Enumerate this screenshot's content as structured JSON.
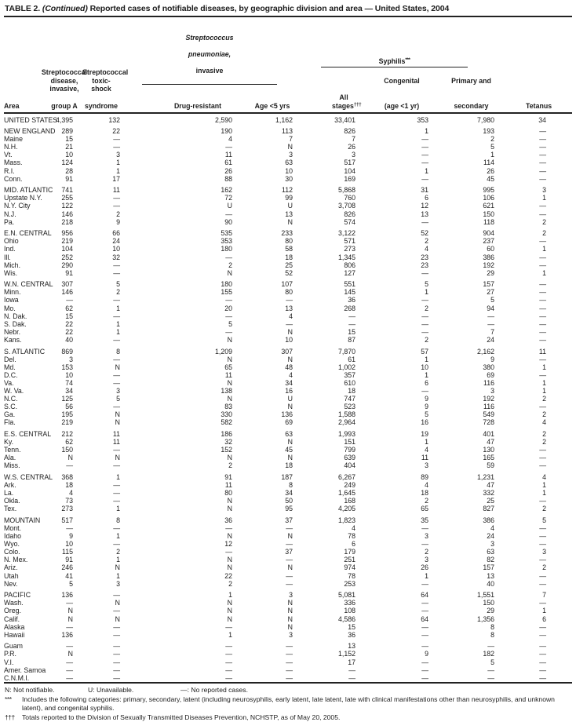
{
  "title": {
    "label": "TABLE 2.",
    "continued": "(Continued)",
    "text": "Reported cases of notifiable diseases, by geographic division and area — United States, 2004"
  },
  "header": {
    "area": "Area",
    "strep_a_top": "Streptococcal\ndisease,\ninvasive,",
    "strep_a_bottom": "group A",
    "toxic_top": "Streptococcal\ntoxic-shock",
    "toxic_bottom": "syndrome",
    "pneu_line1": "Streptococcus",
    "pneu_line2": "pneumoniae,",
    "pneu_line3": "invasive",
    "drug_resistant": "Drug-resistant",
    "age_lt5": "Age <5 yrs",
    "syphilis": "Syphilis",
    "syphilis_sup": "***",
    "all_stages": "All stages",
    "all_stages_sup": "†††",
    "congenital_top": "Congenital",
    "congenital_bottom": "(age <1 yr)",
    "primary_top": "Primary and",
    "primary_bottom": "secondary",
    "tetanus": "Tetanus"
  },
  "sections": [
    {
      "rows": [
        {
          "area": "UNITED STATES",
          "values": [
            "4,395",
            "132",
            "2,590",
            "1,162",
            "33,401",
            "353",
            "7,980",
            "34"
          ]
        }
      ]
    },
    {
      "rows": [
        {
          "area": "NEW ENGLAND",
          "values": [
            "289",
            "22",
            "190",
            "113",
            "826",
            "1",
            "193",
            "—"
          ]
        },
        {
          "area": "Maine",
          "values": [
            "15",
            "—",
            "4",
            "7",
            "7",
            "—",
            "2",
            "—"
          ]
        },
        {
          "area": "N.H.",
          "values": [
            "21",
            "—",
            "—",
            "N",
            "26",
            "—",
            "5",
            "—"
          ]
        },
        {
          "area": "Vt.",
          "values": [
            "10",
            "3",
            "11",
            "3",
            "3",
            "—",
            "1",
            "—"
          ]
        },
        {
          "area": "Mass.",
          "values": [
            "124",
            "1",
            "61",
            "63",
            "517",
            "—",
            "114",
            "—"
          ]
        },
        {
          "area": "R.I.",
          "values": [
            "28",
            "1",
            "26",
            "10",
            "104",
            "1",
            "26",
            "—"
          ]
        },
        {
          "area": "Conn.",
          "values": [
            "91",
            "17",
            "88",
            "30",
            "169",
            "—",
            "45",
            "—"
          ]
        }
      ]
    },
    {
      "rows": [
        {
          "area": "MID. ATLANTIC",
          "values": [
            "741",
            "11",
            "162",
            "112",
            "5,868",
            "31",
            "995",
            "3"
          ]
        },
        {
          "area": "Upstate N.Y.",
          "values": [
            "255",
            "—",
            "72",
            "99",
            "760",
            "6",
            "106",
            "1"
          ]
        },
        {
          "area": "N.Y. City",
          "values": [
            "122",
            "—",
            "U",
            "U",
            "3,708",
            "12",
            "621",
            "—"
          ]
        },
        {
          "area": "N.J.",
          "values": [
            "146",
            "2",
            "—",
            "13",
            "826",
            "13",
            "150",
            "—"
          ]
        },
        {
          "area": "Pa.",
          "values": [
            "218",
            "9",
            "90",
            "N",
            "574",
            "—",
            "118",
            "2"
          ]
        }
      ]
    },
    {
      "rows": [
        {
          "area": "E.N. CENTRAL",
          "values": [
            "956",
            "66",
            "535",
            "233",
            "3,122",
            "52",
            "904",
            "2"
          ]
        },
        {
          "area": "Ohio",
          "values": [
            "219",
            "24",
            "353",
            "80",
            "571",
            "2",
            "237",
            "—"
          ]
        },
        {
          "area": "Ind.",
          "values": [
            "104",
            "10",
            "180",
            "58",
            "273",
            "4",
            "60",
            "1"
          ]
        },
        {
          "area": "Ill.",
          "values": [
            "252",
            "32",
            "—",
            "18",
            "1,345",
            "23",
            "386",
            "—"
          ]
        },
        {
          "area": "Mich.",
          "values": [
            "290",
            "—",
            "2",
            "25",
            "806",
            "23",
            "192",
            "—"
          ]
        },
        {
          "area": "Wis.",
          "values": [
            "91",
            "—",
            "N",
            "52",
            "127",
            "—",
            "29",
            "1"
          ]
        }
      ]
    },
    {
      "rows": [
        {
          "area": "W.N. CENTRAL",
          "values": [
            "307",
            "5",
            "180",
            "107",
            "551",
            "5",
            "157",
            "—"
          ]
        },
        {
          "area": "Minn.",
          "values": [
            "146",
            "2",
            "155",
            "80",
            "145",
            "1",
            "27",
            "—"
          ]
        },
        {
          "area": "Iowa",
          "values": [
            "—",
            "—",
            "—",
            "—",
            "36",
            "—",
            "5",
            "—"
          ]
        },
        {
          "area": "Mo.",
          "values": [
            "62",
            "1",
            "20",
            "13",
            "268",
            "2",
            "94",
            "—"
          ]
        },
        {
          "area": "N. Dak.",
          "values": [
            "15",
            "—",
            "—",
            "4",
            "—",
            "—",
            "—",
            "—"
          ]
        },
        {
          "area": "S. Dak.",
          "values": [
            "22",
            "1",
            "5",
            "—",
            "—",
            "—",
            "—",
            "—"
          ]
        },
        {
          "area": "Nebr.",
          "values": [
            "22",
            "1",
            "—",
            "N",
            "15",
            "—",
            "7",
            "—"
          ]
        },
        {
          "area": "Kans.",
          "values": [
            "40",
            "—",
            "N",
            "10",
            "87",
            "2",
            "24",
            "—"
          ]
        }
      ]
    },
    {
      "rows": [
        {
          "area": "S. ATLANTIC",
          "values": [
            "869",
            "8",
            "1,209",
            "307",
            "7,870",
            "57",
            "2,162",
            "11"
          ]
        },
        {
          "area": "Del.",
          "values": [
            "3",
            "—",
            "N",
            "N",
            "61",
            "1",
            "9",
            "—"
          ]
        },
        {
          "area": "Md.",
          "values": [
            "153",
            "N",
            "65",
            "48",
            "1,002",
            "10",
            "380",
            "1"
          ]
        },
        {
          "area": "D.C.",
          "values": [
            "10",
            "—",
            "11",
            "4",
            "357",
            "1",
            "69",
            "—"
          ]
        },
        {
          "area": "Va.",
          "values": [
            "74",
            "—",
            "N",
            "34",
            "610",
            "6",
            "116",
            "1"
          ]
        },
        {
          "area": "W. Va.",
          "values": [
            "34",
            "3",
            "138",
            "16",
            "18",
            "—",
            "3",
            "1"
          ]
        },
        {
          "area": "N.C.",
          "values": [
            "125",
            "5",
            "N",
            "U",
            "747",
            "9",
            "192",
            "2"
          ]
        },
        {
          "area": "S.C.",
          "values": [
            "56",
            "—",
            "83",
            "N",
            "523",
            "9",
            "116",
            "—"
          ]
        },
        {
          "area": "Ga.",
          "values": [
            "195",
            "N",
            "330",
            "136",
            "1,588",
            "5",
            "549",
            "2"
          ]
        },
        {
          "area": "Fla.",
          "values": [
            "219",
            "N",
            "582",
            "69",
            "2,964",
            "16",
            "728",
            "4"
          ]
        }
      ]
    },
    {
      "rows": [
        {
          "area": "E.S. CENTRAL",
          "values": [
            "212",
            "11",
            "186",
            "63",
            "1,993",
            "19",
            "401",
            "2"
          ]
        },
        {
          "area": "Ky.",
          "values": [
            "62",
            "11",
            "32",
            "N",
            "151",
            "1",
            "47",
            "2"
          ]
        },
        {
          "area": "Tenn.",
          "values": [
            "150",
            "—",
            "152",
            "45",
            "799",
            "4",
            "130",
            "—"
          ]
        },
        {
          "area": "Ala.",
          "values": [
            "N",
            "N",
            "N",
            "N",
            "639",
            "11",
            "165",
            "—"
          ]
        },
        {
          "area": "Miss.",
          "values": [
            "—",
            "—",
            "2",
            "18",
            "404",
            "3",
            "59",
            "—"
          ]
        }
      ]
    },
    {
      "rows": [
        {
          "area": "W.S. CENTRAL",
          "values": [
            "368",
            "1",
            "91",
            "187",
            "6,267",
            "89",
            "1,231",
            "4"
          ]
        },
        {
          "area": "Ark.",
          "values": [
            "18",
            "—",
            "11",
            "8",
            "249",
            "4",
            "47",
            "1"
          ]
        },
        {
          "area": "La.",
          "values": [
            "4",
            "—",
            "80",
            "34",
            "1,645",
            "18",
            "332",
            "1"
          ]
        },
        {
          "area": "Okla.",
          "values": [
            "73",
            "—",
            "N",
            "50",
            "168",
            "2",
            "25",
            "—"
          ]
        },
        {
          "area": "Tex.",
          "values": [
            "273",
            "1",
            "N",
            "95",
            "4,205",
            "65",
            "827",
            "2"
          ]
        }
      ]
    },
    {
      "rows": [
        {
          "area": "MOUNTAIN",
          "values": [
            "517",
            "8",
            "36",
            "37",
            "1,823",
            "35",
            "386",
            "5"
          ]
        },
        {
          "area": "Mont.",
          "values": [
            "—",
            "—",
            "—",
            "—",
            "4",
            "—",
            "4",
            "—"
          ]
        },
        {
          "area": "Idaho",
          "values": [
            "9",
            "1",
            "N",
            "N",
            "78",
            "3",
            "24",
            "—"
          ]
        },
        {
          "area": "Wyo.",
          "values": [
            "10",
            "—",
            "12",
            "—",
            "6",
            "—",
            "3",
            "—"
          ]
        },
        {
          "area": "Colo.",
          "values": [
            "115",
            "2",
            "—",
            "37",
            "179",
            "2",
            "63",
            "3"
          ]
        },
        {
          "area": "N. Mex.",
          "values": [
            "91",
            "1",
            "N",
            "—",
            "251",
            "3",
            "82",
            "—"
          ]
        },
        {
          "area": "Ariz.",
          "values": [
            "246",
            "N",
            "N",
            "N",
            "974",
            "26",
            "157",
            "2"
          ]
        },
        {
          "area": "Utah",
          "values": [
            "41",
            "1",
            "22",
            "—",
            "78",
            "1",
            "13",
            "—"
          ]
        },
        {
          "area": "Nev.",
          "values": [
            "5",
            "3",
            "2",
            "—",
            "253",
            "—",
            "40",
            "—"
          ]
        }
      ]
    },
    {
      "rows": [
        {
          "area": "PACIFIC",
          "values": [
            "136",
            "—",
            "1",
            "3",
            "5,081",
            "64",
            "1,551",
            "7"
          ]
        },
        {
          "area": "Wash.",
          "values": [
            "—",
            "N",
            "N",
            "N",
            "336",
            "—",
            "150",
            "—"
          ]
        },
        {
          "area": "Oreg.",
          "values": [
            "N",
            "—",
            "N",
            "N",
            "108",
            "—",
            "29",
            "1"
          ]
        },
        {
          "area": "Calif.",
          "values": [
            "N",
            "N",
            "N",
            "N",
            "4,586",
            "64",
            "1,356",
            "6"
          ]
        },
        {
          "area": "Alaska",
          "values": [
            "—",
            "—",
            "—",
            "N",
            "15",
            "—",
            "8",
            "—"
          ]
        },
        {
          "area": "Hawaii",
          "values": [
            "136",
            "—",
            "1",
            "3",
            "36",
            "—",
            "8",
            "—"
          ]
        }
      ]
    },
    {
      "rows": [
        {
          "area": "Guam",
          "values": [
            "—",
            "—",
            "—",
            "—",
            "13",
            "—",
            "—",
            "—"
          ]
        },
        {
          "area": "P.R.",
          "values": [
            "N",
            "—",
            "—",
            "—",
            "1,152",
            "9",
            "182",
            "—"
          ]
        },
        {
          "area": "V.I.",
          "values": [
            "—",
            "—",
            "—",
            "—",
            "17",
            "—",
            "5",
            "—"
          ]
        },
        {
          "area": "Amer. Samoa",
          "values": [
            "—",
            "—",
            "—",
            "—",
            "—",
            "—",
            "—",
            "—"
          ]
        },
        {
          "area": "C.N.M.I.",
          "values": [
            "—",
            "—",
            "—",
            "—",
            "—",
            "—",
            "—",
            "—"
          ]
        }
      ]
    }
  ],
  "footnotes": {
    "legend": [
      "N: Not notifiable.",
      "U: Unavailable.",
      "—: No reported cases."
    ],
    "notes": [
      {
        "marker": "***",
        "text": "Includes the following categories: primary, secondary, latent (including neurosyphilis, early latent, late latent, late with clinical manifestations other than neurosyphilis, and unknown latent), and congenital syphilis."
      },
      {
        "marker": "†††",
        "text": "Totals reported to the Division of Sexually Transmitted Diseases Prevention, NCHSTP, as of May 20, 2005."
      }
    ]
  }
}
